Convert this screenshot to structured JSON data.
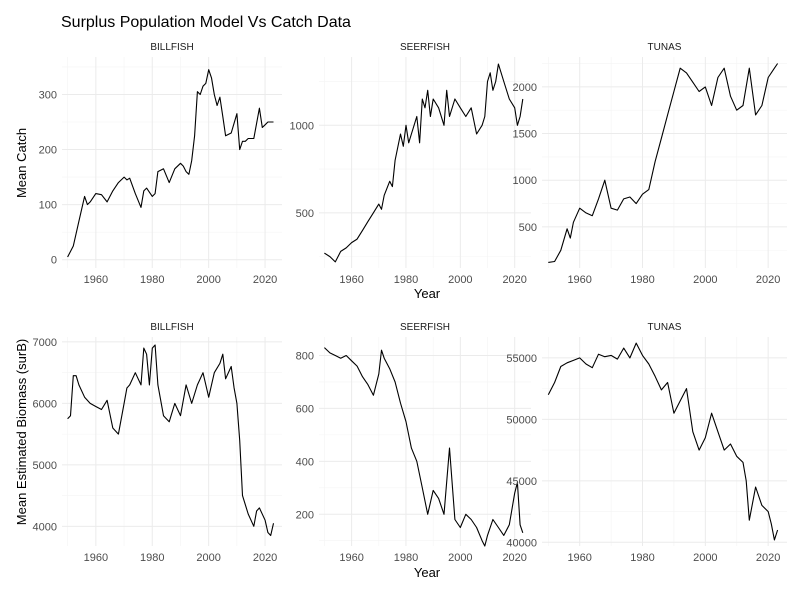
{
  "chart_data": {
    "type": "line",
    "title": "Surplus Population Model Vs Catch Data",
    "xlabel": "Year",
    "x_ticks": [
      1960,
      1980,
      2000,
      2020
    ],
    "xlim": [
      1948,
      2026
    ],
    "grid": true,
    "rows": [
      {
        "ylabel": "Mean Catch",
        "panels": [
          {
            "strip": "BILLFISH",
            "ylim": [
              -15,
              368
            ],
            "y_ticks": [
              0,
              100,
              200,
              300
            ],
            "x": [
              1950,
              1952,
              1954,
              1956,
              1957,
              1958,
              1960,
              1962,
              1964,
              1966,
              1968,
              1970,
              1971,
              1972,
              1974,
              1976,
              1977,
              1978,
              1980,
              1981,
              1982,
              1984,
              1986,
              1988,
              1990,
              1991,
              1992,
              1993,
              1994,
              1995,
              1996,
              1997,
              1998,
              1999,
              2000,
              2001,
              2002,
              2003,
              2004,
              2005,
              2006,
              2008,
              2010,
              2011,
              2012,
              2013,
              2014,
              2016,
              2018,
              2019,
              2020,
              2021,
              2022,
              2023
            ],
            "y": [
              5,
              25,
              70,
              115,
              100,
              105,
              120,
              118,
              105,
              125,
              140,
              150,
              145,
              148,
              120,
              95,
              125,
              130,
              115,
              120,
              160,
              165,
              140,
              165,
              175,
              170,
              160,
              155,
              180,
              225,
              305,
              300,
              315,
              320,
              345,
              330,
              300,
              280,
              295,
              260,
              225,
              230,
              265,
              200,
              215,
              215,
              220,
              220,
              275,
              240,
              245,
              250,
              250,
              250
            ]
          },
          {
            "strip": "SEERFISH",
            "ylim": [
              185,
              1390
            ],
            "y_ticks": [
              500,
              1000
            ],
            "x": [
              1950,
              1952,
              1954,
              1956,
              1958,
              1960,
              1962,
              1964,
              1966,
              1968,
              1970,
              1971,
              1972,
              1974,
              1975,
              1976,
              1978,
              1979,
              1980,
              1981,
              1982,
              1984,
              1985,
              1986,
              1987,
              1988,
              1989,
              1990,
              1992,
              1994,
              1995,
              1996,
              1998,
              2000,
              2002,
              2004,
              2006,
              2008,
              2009,
              2010,
              2011,
              2012,
              2013,
              2014,
              2016,
              2018,
              2020,
              2021,
              2022,
              2023
            ],
            "y": [
              270,
              250,
              220,
              280,
              300,
              330,
              350,
              400,
              450,
              500,
              550,
              520,
              600,
              680,
              650,
              800,
              950,
              880,
              1000,
              900,
              950,
              1050,
              900,
              1150,
              1100,
              1200,
              1050,
              1150,
              1100,
              1000,
              1200,
              1050,
              1150,
              1100,
              1050,
              1100,
              950,
              1000,
              1050,
              1250,
              1300,
              1200,
              1250,
              1350,
              1250,
              1150,
              1100,
              1000,
              1050,
              1150
            ]
          },
          {
            "strip": "TUNAS",
            "ylim": [
              60,
              2320
            ],
            "y_ticks": [
              500,
              1000,
              1500,
              2000
            ],
            "x": [
              1950,
              1952,
              1954,
              1956,
              1957,
              1958,
              1960,
              1962,
              1964,
              1966,
              1968,
              1970,
              1972,
              1974,
              1976,
              1978,
              1980,
              1982,
              1984,
              1986,
              1988,
              1990,
              1992,
              1994,
              1996,
              1998,
              2000,
              2002,
              2004,
              2006,
              2008,
              2010,
              2012,
              2014,
              2016,
              2018,
              2020,
              2022,
              2023
            ],
            "y": [
              120,
              130,
              250,
              480,
              380,
              550,
              700,
              650,
              620,
              800,
              1000,
              700,
              680,
              800,
              820,
              750,
              850,
              900,
              1200,
              1450,
              1700,
              1950,
              2200,
              2150,
              2050,
              1950,
              2000,
              1800,
              2100,
              2200,
              1900,
              1750,
              1800,
              2200,
              1700,
              1800,
              2100,
              2200,
              2250
            ]
          }
        ]
      },
      {
        "ylabel": "Mean Estimated Biomass (surB)",
        "panels": [
          {
            "strip": "BILLFISH",
            "ylim": [
              3680,
              7080
            ],
            "y_ticks": [
              4000,
              5000,
              6000,
              7000
            ],
            "x": [
              1950,
              1951,
              1952,
              1953,
              1954,
              1956,
              1958,
              1960,
              1962,
              1964,
              1966,
              1968,
              1970,
              1971,
              1972,
              1974,
              1976,
              1977,
              1978,
              1979,
              1980,
              1981,
              1982,
              1984,
              1986,
              1988,
              1990,
              1992,
              1994,
              1996,
              1998,
              2000,
              2002,
              2004,
              2005,
              2006,
              2008,
              2009,
              2010,
              2011,
              2012,
              2014,
              2016,
              2017,
              2018,
              2020,
              2021,
              2022,
              2023
            ],
            "y": [
              5750,
              5800,
              6450,
              6450,
              6300,
              6100,
              6000,
              5950,
              5900,
              6050,
              5600,
              5500,
              6000,
              6250,
              6300,
              6500,
              6300,
              6900,
              6800,
              6300,
              6900,
              6950,
              6300,
              5800,
              5700,
              6000,
              5800,
              6300,
              6000,
              6300,
              6500,
              6100,
              6500,
              6650,
              6800,
              6400,
              6600,
              6250,
              6000,
              5400,
              4500,
              4200,
              4000,
              4250,
              4300,
              4100,
              3900,
              3850,
              4050
            ]
          },
          {
            "strip": "SEERFISH",
            "ylim": [
              80,
              870
            ],
            "y_ticks": [
              200,
              400,
              600,
              800
            ],
            "x": [
              1950,
              1952,
              1954,
              1956,
              1958,
              1960,
              1962,
              1964,
              1966,
              1968,
              1970,
              1971,
              1972,
              1974,
              1976,
              1978,
              1980,
              1982,
              1984,
              1986,
              1988,
              1990,
              1992,
              1994,
              1996,
              1998,
              2000,
              2002,
              2004,
              2006,
              2008,
              2009,
              2010,
              2012,
              2014,
              2016,
              2018,
              2020,
              2021,
              2022,
              2023
            ],
            "y": [
              830,
              810,
              800,
              790,
              800,
              780,
              760,
              720,
              690,
              650,
              730,
              820,
              790,
              750,
              700,
              620,
              550,
              450,
              400,
              300,
              200,
              290,
              260,
              200,
              450,
              180,
              150,
              200,
              180,
              150,
              100,
              80,
              120,
              180,
              150,
              120,
              160,
              280,
              320,
              160,
              130
            ]
          },
          {
            "strip": "TUNAS",
            "ylim": [
              39700,
              56700
            ],
            "y_ticks": [
              40000,
              45000,
              50000,
              55000
            ],
            "x": [
              1950,
              1952,
              1954,
              1956,
              1958,
              1960,
              1962,
              1964,
              1966,
              1968,
              1970,
              1972,
              1974,
              1976,
              1978,
              1980,
              1982,
              1984,
              1986,
              1988,
              1990,
              1992,
              1994,
              1996,
              1998,
              2000,
              2002,
              2004,
              2006,
              2008,
              2010,
              2012,
              2013,
              2014,
              2016,
              2018,
              2020,
              2021,
              2022,
              2023
            ],
            "y": [
              52000,
              53000,
              54300,
              54600,
              54800,
              55000,
              54500,
              54200,
              55300,
              55100,
              55200,
              54900,
              55800,
              55000,
              56200,
              55200,
              54500,
              53500,
              52400,
              53000,
              50500,
              51500,
              52500,
              49000,
              47500,
              48500,
              50500,
              49000,
              47500,
              48000,
              47000,
              46500,
              45000,
              41800,
              44500,
              43000,
              42500,
              41500,
              40200,
              41000
            ]
          }
        ]
      }
    ]
  }
}
